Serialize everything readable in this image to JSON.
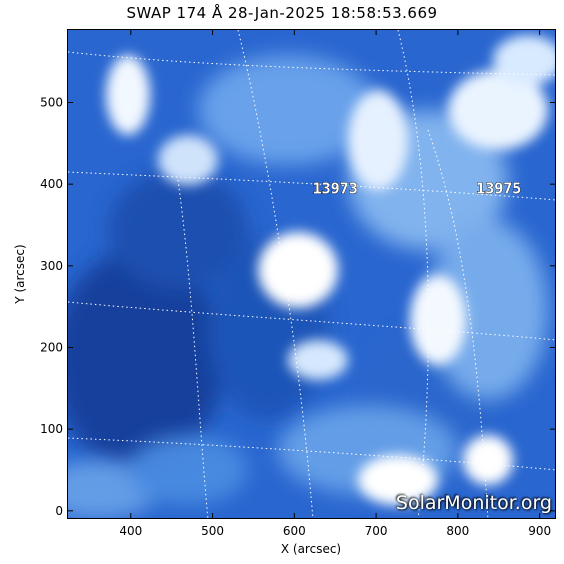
{
  "title": "SWAP 174 Å 28-Jan-2025 18:58:53.669",
  "xlabel": "X (arcsec)",
  "ylabel": "Y (arcsec)",
  "x_ticks": [
    "400",
    "500",
    "600",
    "700",
    "800",
    "900"
  ],
  "y_ticks": [
    "0",
    "100",
    "200",
    "300",
    "400",
    "500"
  ],
  "x_tick_values": [
    400,
    500,
    600,
    700,
    800,
    900
  ],
  "y_tick_values": [
    0,
    100,
    200,
    300,
    400,
    500
  ],
  "x_range": [
    322,
    920
  ],
  "y_range": [
    -10,
    590
  ],
  "active_regions": [
    {
      "label": "13973",
      "x": 650,
      "y": 395
    },
    {
      "label": "13975",
      "x": 850,
      "y": 395
    }
  ],
  "watermark": "SolarMonitor.org",
  "colors": {
    "dark": "#1c4fae",
    "mid": "#3f86e3",
    "light": "#a9cff6",
    "white": "#ffffff"
  }
}
